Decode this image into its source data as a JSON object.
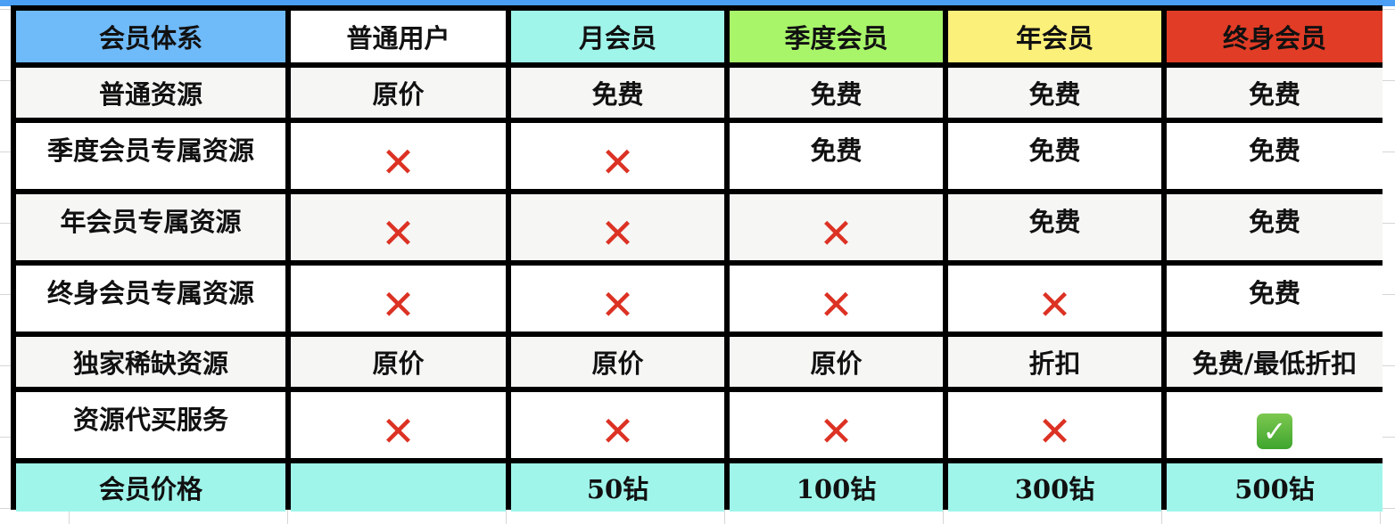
{
  "colors": {
    "header_system": "#6fbaf8",
    "header_normal": "#ffffff",
    "header_month": "#9ff5ea",
    "header_quarter": "#a8f56a",
    "header_year": "#fbf07a",
    "header_lifetime": "#e03c26",
    "no_mark": "#dc3224",
    "yes_mark": "#4bb03a"
  },
  "header": [
    "会员体系",
    "普通用户",
    "月会员",
    "季度会员",
    "年会员",
    "终身会员"
  ],
  "rows": [
    {
      "label": "普通资源",
      "cells": [
        "原价",
        "免费",
        "免费",
        "免费",
        "免费"
      ]
    },
    {
      "label": "季度会员专属资源",
      "cells": [
        "x",
        "x",
        "免费",
        "免费",
        "免费"
      ]
    },
    {
      "label": "年会员专属资源",
      "cells": [
        "x",
        "x",
        "x",
        "免费",
        "免费"
      ]
    },
    {
      "label": "终身会员专属资源",
      "cells": [
        "x",
        "x",
        "x",
        "x",
        "免费"
      ]
    },
    {
      "label": "独家稀缺资源",
      "cells": [
        "原价",
        "原价",
        "原价",
        "折扣",
        "免费/最低折扣"
      ]
    },
    {
      "label": "资源代买服务",
      "cells": [
        "x",
        "x",
        "x",
        "x",
        "check"
      ]
    },
    {
      "label": "会员价格",
      "cells": [
        "",
        "50钻",
        "100钻",
        "300钻",
        "500钻"
      ]
    }
  ],
  "icons": {
    "x": "cross-mark-icon",
    "check": "check-mark-button-icon"
  }
}
